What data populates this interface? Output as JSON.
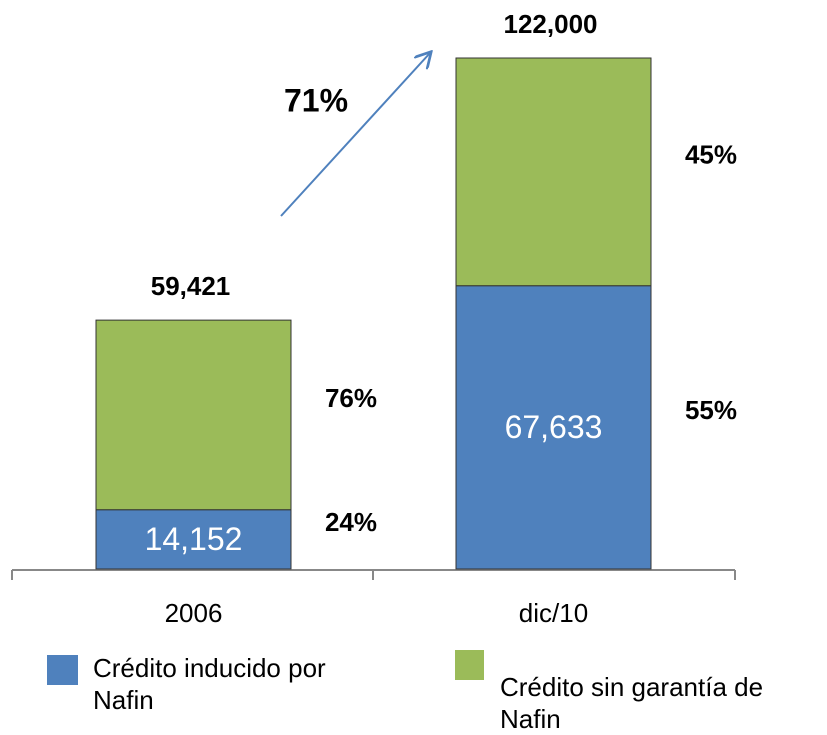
{
  "chart_data": {
    "type": "stacked_bar",
    "categories": [
      "2006",
      "dic/10"
    ],
    "series": [
      {
        "name": "Crédito inducido por Nafin",
        "color": "#4f81bd",
        "values": [
          14152,
          67633
        ],
        "value_labels": [
          "14,152",
          "67,633"
        ],
        "percent_labels": [
          "24%",
          "55%"
        ]
      },
      {
        "name": "Crédito sin garantía de Nafin",
        "color": "#9bbb59",
        "values": [
          45269,
          54367
        ],
        "percent_labels": [
          "76%",
          "45%"
        ]
      }
    ],
    "totals": [
      59421,
      122000
    ],
    "total_labels": [
      "59,421",
      "122,000"
    ],
    "annotation": "71%",
    "ylim": [
      0,
      122000
    ]
  }
}
